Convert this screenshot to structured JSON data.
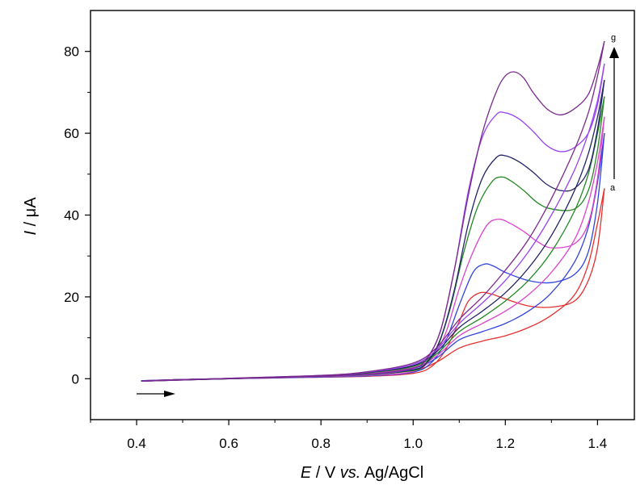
{
  "chart_data": {
    "type": "line",
    "title": "",
    "xlabel_parts": {
      "symbol": "E",
      "unit": " / V ",
      "italic_mid": "vs.",
      "ref": " Ag/AgCl"
    },
    "ylabel_parts": {
      "symbol": "I",
      "unit": " / μA"
    },
    "xlim": [
      0.3,
      1.48
    ],
    "ylim": [
      -10,
      90
    ],
    "xticks": [
      0.4,
      0.6,
      0.8,
      1.0,
      1.2,
      1.4
    ],
    "xtick_labels": [
      "0.4",
      "0.6",
      "0.8",
      "1.0",
      "1.2",
      "1.4"
    ],
    "yticks": [
      0,
      20,
      40,
      60,
      80
    ],
    "ytick_labels": [
      "0",
      "20",
      "40",
      "60",
      "80"
    ],
    "grid": false,
    "legend": "none",
    "annotations": {
      "start": "a",
      "end": "g"
    },
    "sweep_direction": "anodic",
    "series": [
      {
        "color": "#e53030",
        "forward": [
          [
            0.41,
            -0.5
          ],
          [
            0.6,
            0
          ],
          [
            0.8,
            0.5
          ],
          [
            0.9,
            1
          ],
          [
            1.0,
            2
          ],
          [
            1.05,
            4
          ],
          [
            1.1,
            7.5
          ],
          [
            1.15,
            9.2
          ],
          [
            1.2,
            10.5
          ],
          [
            1.25,
            12.5
          ],
          [
            1.3,
            15.5
          ],
          [
            1.35,
            20.5
          ],
          [
            1.38,
            28
          ],
          [
            1.4,
            38
          ],
          [
            1.415,
            46.5
          ]
        ],
        "reverse": [
          [
            1.415,
            46.5
          ],
          [
            1.4,
            32
          ],
          [
            1.38,
            24
          ],
          [
            1.35,
            19
          ],
          [
            1.3,
            17.5
          ],
          [
            1.25,
            17.8
          ],
          [
            1.2,
            19.5
          ],
          [
            1.17,
            20.7
          ],
          [
            1.145,
            21
          ],
          [
            1.12,
            19
          ],
          [
            1.1,
            14
          ],
          [
            1.07,
            7
          ],
          [
            1.04,
            3
          ],
          [
            1.0,
            1.3
          ],
          [
            0.9,
            0.6
          ],
          [
            0.7,
            0.2
          ],
          [
            0.5,
            -0.2
          ],
          [
            0.41,
            -0.5
          ]
        ]
      },
      {
        "color": "#3344dd",
        "forward": [
          [
            0.41,
            -0.5
          ],
          [
            0.6,
            0
          ],
          [
            0.8,
            0.6
          ],
          [
            0.9,
            1.2
          ],
          [
            1.0,
            2.5
          ],
          [
            1.05,
            5
          ],
          [
            1.1,
            9.5
          ],
          [
            1.15,
            11.5
          ],
          [
            1.2,
            13.5
          ],
          [
            1.25,
            16.5
          ],
          [
            1.3,
            21
          ],
          [
            1.35,
            28.5
          ],
          [
            1.38,
            37
          ],
          [
            1.4,
            48
          ],
          [
            1.415,
            60
          ]
        ],
        "reverse": [
          [
            1.415,
            60
          ],
          [
            1.4,
            43
          ],
          [
            1.38,
            31
          ],
          [
            1.35,
            25.5
          ],
          [
            1.3,
            23.5
          ],
          [
            1.25,
            24
          ],
          [
            1.2,
            26
          ],
          [
            1.175,
            27.5
          ],
          [
            1.155,
            28
          ],
          [
            1.13,
            26
          ],
          [
            1.1,
            18
          ],
          [
            1.07,
            9
          ],
          [
            1.04,
            4
          ],
          [
            1.0,
            1.6
          ],
          [
            0.9,
            0.7
          ],
          [
            0.7,
            0.2
          ],
          [
            0.5,
            -0.2
          ],
          [
            0.41,
            -0.5
          ]
        ]
      },
      {
        "color": "#dd44cc",
        "forward": [
          [
            0.41,
            -0.6
          ],
          [
            0.6,
            0
          ],
          [
            0.8,
            0.6
          ],
          [
            0.9,
            1.3
          ],
          [
            1.0,
            2.7
          ],
          [
            1.05,
            5.5
          ],
          [
            1.1,
            10.5
          ],
          [
            1.15,
            13.5
          ],
          [
            1.2,
            16.5
          ],
          [
            1.25,
            20.5
          ],
          [
            1.3,
            26
          ],
          [
            1.35,
            34
          ],
          [
            1.38,
            43
          ],
          [
            1.4,
            53
          ],
          [
            1.415,
            64
          ]
        ],
        "reverse": [
          [
            1.415,
            64
          ],
          [
            1.4,
            49
          ],
          [
            1.38,
            38
          ],
          [
            1.35,
            33
          ],
          [
            1.3,
            32
          ],
          [
            1.27,
            33.5
          ],
          [
            1.24,
            36
          ],
          [
            1.21,
            38
          ],
          [
            1.185,
            39
          ],
          [
            1.16,
            37.5
          ],
          [
            1.13,
            31
          ],
          [
            1.1,
            22
          ],
          [
            1.07,
            11
          ],
          [
            1.04,
            5
          ],
          [
            1.0,
            1.8
          ],
          [
            0.9,
            0.8
          ],
          [
            0.7,
            0.3
          ],
          [
            0.5,
            -0.2
          ],
          [
            0.41,
            -0.6
          ]
        ]
      },
      {
        "color": "#228822",
        "forward": [
          [
            0.41,
            -0.6
          ],
          [
            0.6,
            0
          ],
          [
            0.8,
            0.7
          ],
          [
            0.9,
            1.4
          ],
          [
            1.0,
            3
          ],
          [
            1.05,
            6
          ],
          [
            1.1,
            11.5
          ],
          [
            1.15,
            15
          ],
          [
            1.2,
            19
          ],
          [
            1.25,
            24
          ],
          [
            1.3,
            31
          ],
          [
            1.35,
            41
          ],
          [
            1.38,
            50
          ],
          [
            1.4,
            60
          ],
          [
            1.415,
            69
          ]
        ],
        "reverse": [
          [
            1.415,
            69
          ],
          [
            1.4,
            56
          ],
          [
            1.38,
            46
          ],
          [
            1.35,
            41.5
          ],
          [
            1.3,
            41.5
          ],
          [
            1.27,
            43
          ],
          [
            1.24,
            46
          ],
          [
            1.21,
            48.5
          ],
          [
            1.19,
            49.3
          ],
          [
            1.17,
            48
          ],
          [
            1.14,
            42
          ],
          [
            1.11,
            31
          ],
          [
            1.08,
            17
          ],
          [
            1.05,
            7
          ],
          [
            1.02,
            3
          ],
          [
            1.0,
            2
          ],
          [
            0.9,
            0.9
          ],
          [
            0.7,
            0.3
          ],
          [
            0.5,
            -0.2
          ],
          [
            0.41,
            -0.6
          ]
        ]
      },
      {
        "color": "#222266",
        "forward": [
          [
            0.41,
            -0.6
          ],
          [
            0.6,
            0
          ],
          [
            0.8,
            0.7
          ],
          [
            0.9,
            1.5
          ],
          [
            1.0,
            3.2
          ],
          [
            1.05,
            6.5
          ],
          [
            1.1,
            12.5
          ],
          [
            1.15,
            16.5
          ],
          [
            1.2,
            21
          ],
          [
            1.25,
            27
          ],
          [
            1.3,
            35
          ],
          [
            1.35,
            46
          ],
          [
            1.38,
            55
          ],
          [
            1.4,
            64
          ],
          [
            1.415,
            73
          ]
        ],
        "reverse": [
          [
            1.415,
            73
          ],
          [
            1.4,
            61
          ],
          [
            1.38,
            51
          ],
          [
            1.35,
            46.5
          ],
          [
            1.32,
            46
          ],
          [
            1.29,
            47.5
          ],
          [
            1.26,
            50.5
          ],
          [
            1.23,
            53
          ],
          [
            1.2,
            54.5
          ],
          [
            1.18,
            54
          ],
          [
            1.15,
            49
          ],
          [
            1.12,
            38
          ],
          [
            1.09,
            22
          ],
          [
            1.06,
            10
          ],
          [
            1.03,
            4
          ],
          [
            1.0,
            2.2
          ],
          [
            0.9,
            1
          ],
          [
            0.7,
            0.3
          ],
          [
            0.5,
            -0.2
          ],
          [
            0.41,
            -0.6
          ]
        ]
      },
      {
        "color": "#9944ee",
        "forward": [
          [
            0.41,
            -0.6
          ],
          [
            0.6,
            0.1
          ],
          [
            0.8,
            0.8
          ],
          [
            0.9,
            1.6
          ],
          [
            1.0,
            3.5
          ],
          [
            1.05,
            7
          ],
          [
            1.1,
            13.5
          ],
          [
            1.15,
            18.5
          ],
          [
            1.2,
            24
          ],
          [
            1.25,
            31
          ],
          [
            1.3,
            40
          ],
          [
            1.35,
            51
          ],
          [
            1.38,
            60
          ],
          [
            1.4,
            68
          ],
          [
            1.415,
            77
          ]
        ],
        "reverse": [
          [
            1.415,
            77
          ],
          [
            1.4,
            67
          ],
          [
            1.38,
            60
          ],
          [
            1.35,
            56.5
          ],
          [
            1.32,
            55.5
          ],
          [
            1.29,
            57
          ],
          [
            1.26,
            60.5
          ],
          [
            1.23,
            63.5
          ],
          [
            1.2,
            65
          ],
          [
            1.18,
            64.5
          ],
          [
            1.15,
            59
          ],
          [
            1.12,
            46
          ],
          [
            1.09,
            27
          ],
          [
            1.06,
            12
          ],
          [
            1.03,
            5
          ],
          [
            1.0,
            2.5
          ],
          [
            0.9,
            1
          ],
          [
            0.7,
            0.3
          ],
          [
            0.5,
            -0.2
          ],
          [
            0.41,
            -0.6
          ]
        ]
      },
      {
        "color": "#7a2a8c",
        "forward": [
          [
            0.41,
            -0.6
          ],
          [
            0.6,
            0.1
          ],
          [
            0.8,
            0.8
          ],
          [
            0.9,
            1.7
          ],
          [
            1.0,
            3.8
          ],
          [
            1.05,
            7.5
          ],
          [
            1.1,
            14.5
          ],
          [
            1.15,
            20
          ],
          [
            1.2,
            26.5
          ],
          [
            1.25,
            34
          ],
          [
            1.3,
            44
          ],
          [
            1.35,
            56
          ],
          [
            1.38,
            65
          ],
          [
            1.4,
            74
          ],
          [
            1.415,
            82.5
          ]
        ],
        "reverse": [
          [
            1.415,
            82.5
          ],
          [
            1.4,
            76
          ],
          [
            1.38,
            69.5
          ],
          [
            1.35,
            66
          ],
          [
            1.32,
            64.5
          ],
          [
            1.29,
            66
          ],
          [
            1.26,
            70
          ],
          [
            1.24,
            73.5
          ],
          [
            1.22,
            75
          ],
          [
            1.2,
            74
          ],
          [
            1.18,
            70
          ],
          [
            1.15,
            60
          ],
          [
            1.12,
            45
          ],
          [
            1.09,
            27
          ],
          [
            1.06,
            12
          ],
          [
            1.03,
            5
          ],
          [
            1.0,
            2.6
          ],
          [
            0.9,
            1.1
          ],
          [
            0.7,
            0.3
          ],
          [
            0.5,
            -0.2
          ],
          [
            0.41,
            -0.6
          ]
        ]
      }
    ]
  }
}
